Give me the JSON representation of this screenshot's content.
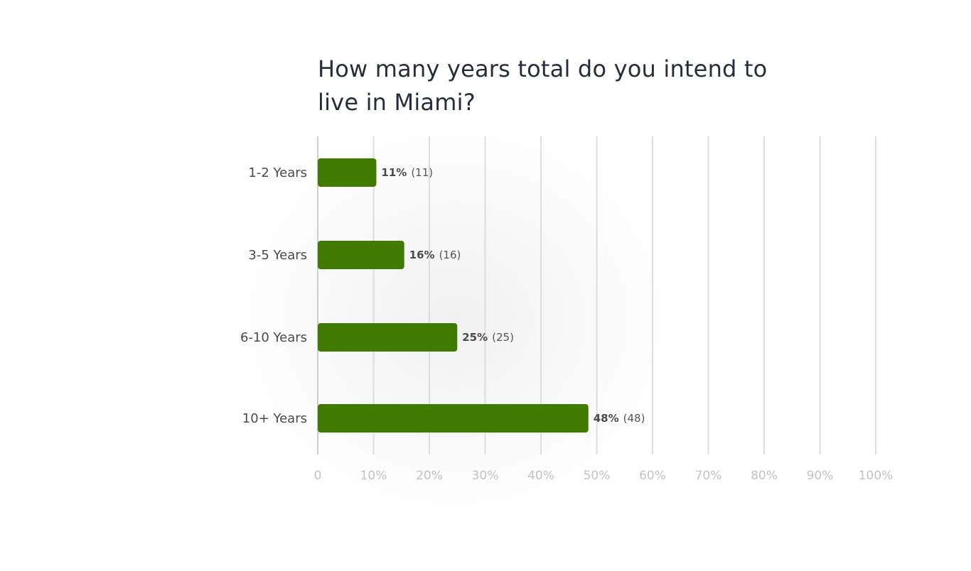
{
  "chart_data": {
    "type": "bar",
    "orientation": "horizontal",
    "title": "How many years total do you intend to live in Miami?",
    "categories": [
      "1-2 Years",
      "3-5 Years",
      "6-10 Years",
      "10+ Years"
    ],
    "values": [
      10.5,
      15.5,
      25,
      48.5
    ],
    "value_labels": [
      "11%",
      "16%",
      "25%",
      "48%"
    ],
    "counts": [
      "(11)",
      "(16)",
      "(25)",
      "(48)"
    ],
    "xlim": [
      0,
      100
    ],
    "x_ticks": [
      0,
      10,
      20,
      30,
      40,
      50,
      60,
      70,
      80,
      90,
      100
    ],
    "x_tick_labels": [
      "0",
      "10%",
      "20%",
      "30%",
      "40%",
      "50%",
      "60%",
      "70%",
      "80%",
      "90%",
      "100%"
    ],
    "xlabel": "",
    "ylabel": "",
    "grid": true,
    "bar_color": "#417a01"
  }
}
